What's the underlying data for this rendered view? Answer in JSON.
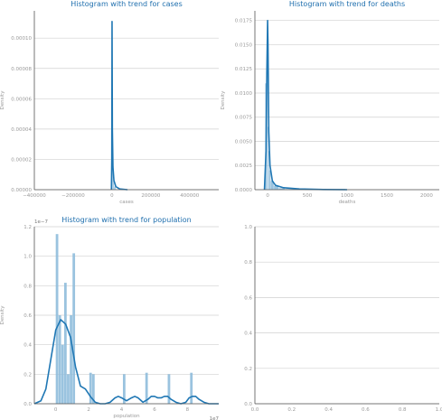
{
  "theme": {
    "accent": "#1f77b4",
    "hist_fill": "#8fbcdc",
    "grid": "#d0d0d0",
    "axis": "#555555",
    "title": "#1f6fae"
  },
  "chart_data": [
    {
      "type": "area",
      "title": "Histogram with trend for cases",
      "xlabel": "cases",
      "ylabel": "Density",
      "xlim": [
        -400000,
        550000
      ],
      "ylim": [
        0,
        0.000118
      ],
      "xticks": [
        -400000,
        -200000,
        0,
        200000,
        400000
      ],
      "xtick_labels": [
        "−400000",
        "−200000",
        "0",
        "200000",
        "400000"
      ],
      "yticks": [
        0,
        2e-05,
        4e-05,
        6e-05,
        8e-05,
        0.0001
      ],
      "ytick_labels": [
        "0.00000",
        "0.00002",
        "0.00004",
        "0.00006",
        "0.00008",
        "0.00010"
      ],
      "grid": true,
      "histogram": {
        "bin_edges": [
          -2000,
          2000,
          6000,
          12000,
          20000
        ],
        "heights": [
          0.000105,
          3e-05,
          6e-06,
          2e-06
        ]
      },
      "trend": {
        "x": [
          -3000,
          -1000,
          0,
          300,
          800,
          2000,
          5000,
          10000,
          20000,
          40000,
          80000
        ],
        "y": [
          0,
          2e-05,
          9e-05,
          0.000111,
          9e-05,
          4e-05,
          1.5e-05,
          6e-06,
          2e-06,
          5e-07,
          0
        ]
      }
    },
    {
      "type": "area",
      "title": "Histogram with trend for deaths",
      "xlabel": "deaths",
      "ylabel": "Density",
      "xlim": [
        -160,
        2160
      ],
      "ylim": [
        0,
        0.0185
      ],
      "xticks": [
        0,
        500,
        1000,
        1500,
        2000
      ],
      "xtick_labels": [
        "0",
        "500",
        "1000",
        "1500",
        "2000"
      ],
      "yticks": [
        0,
        0.0025,
        0.005,
        0.0075,
        0.01,
        0.0125,
        0.015,
        0.0175
      ],
      "ytick_labels": [
        "0.0000",
        "0.0025",
        "0.0050",
        "0.0075",
        "0.0100",
        "0.0125",
        "0.0150",
        "0.0175"
      ],
      "grid": true,
      "histogram": {
        "bin_edges": [
          -30,
          -10,
          0,
          10,
          20,
          40,
          80,
          140,
          220,
          320,
          450
        ],
        "heights": [
          0.011,
          0.015,
          0.0065,
          0.004,
          0.002,
          0.0009,
          0.0004,
          0.00015,
          7e-05,
          3e-05
        ]
      },
      "trend": {
        "x": [
          -40,
          -20,
          -10,
          0,
          5,
          15,
          30,
          60,
          100,
          200,
          400,
          700,
          1000
        ],
        "y": [
          0,
          0.004,
          0.012,
          0.0175,
          0.015,
          0.006,
          0.0025,
          0.0009,
          0.00045,
          0.0002,
          8e-05,
          2e-05,
          0
        ]
      }
    },
    {
      "type": "area",
      "title": "Histogram with trend for population",
      "xlabel": "population",
      "ylabel": "Density",
      "x_multiplier": "1e7",
      "y_multiplier": "1e−7",
      "xlim": [
        -1.3,
        9.9
      ],
      "ylim": [
        0,
        1.2
      ],
      "xticks": [
        0,
        2,
        4,
        6,
        8
      ],
      "xtick_labels": [
        "0",
        "2",
        "4",
        "6",
        "8"
      ],
      "yticks": [
        0,
        0.2,
        0.4,
        0.6,
        0.8,
        1.0,
        1.2
      ],
      "ytick_labels": [
        "0.0",
        "0.2",
        "0.4",
        "0.6",
        "0.8",
        "1.0",
        "1.2"
      ],
      "grid": true,
      "histogram": {
        "bin_edges": [
          0.0,
          0.17,
          0.34,
          0.51,
          0.68,
          0.85,
          1.02,
          1.19,
          1.36,
          1.53,
          1.7,
          1.87,
          2.04,
          2.21,
          2.38,
          2.55,
          2.72,
          2.89,
          3.06,
          3.23,
          3.4,
          3.57,
          3.74,
          3.91,
          4.08,
          4.25,
          4.42,
          4.59,
          4.76,
          4.93,
          5.1,
          5.27,
          5.44,
          5.61,
          5.78,
          5.95,
          6.12,
          6.29,
          6.46,
          6.63,
          6.8,
          6.97,
          7.14,
          7.31,
          7.48,
          7.65,
          7.82,
          7.99,
          8.16,
          8.33
        ],
        "heights": [
          1.15,
          0.6,
          0.4,
          0.82,
          0.2,
          0.6,
          1.02,
          0,
          0,
          0,
          0,
          0,
          0.21,
          0.2,
          0,
          0,
          0,
          0,
          0,
          0,
          0,
          0,
          0,
          0,
          0.2,
          0,
          0,
          0,
          0,
          0,
          0,
          0,
          0.21,
          0,
          0,
          0,
          0,
          0,
          0,
          0,
          0.2,
          0,
          0,
          0,
          0,
          0,
          0,
          0,
          0.21
        ]
      },
      "trend": {
        "x": [
          -1.3,
          -0.9,
          -0.6,
          -0.3,
          0.0,
          0.3,
          0.6,
          0.9,
          1.2,
          1.5,
          1.8,
          2.1,
          2.4,
          2.7,
          3.0,
          3.3,
          3.6,
          3.8,
          4.0,
          4.3,
          4.6,
          4.8,
          5.0,
          5.3,
          5.6,
          5.8,
          6.0,
          6.2,
          6.4,
          6.6,
          6.8,
          7.0,
          7.3,
          7.6,
          7.9,
          8.1,
          8.3,
          8.5,
          8.7,
          9.0,
          9.3,
          9.9
        ],
        "y": [
          0,
          0.02,
          0.1,
          0.3,
          0.5,
          0.57,
          0.54,
          0.45,
          0.25,
          0.12,
          0.1,
          0.05,
          0.01,
          0,
          0,
          0.01,
          0.04,
          0.05,
          0.04,
          0.02,
          0.04,
          0.05,
          0.04,
          0.01,
          0.03,
          0.05,
          0.05,
          0.04,
          0.04,
          0.05,
          0.05,
          0.03,
          0.01,
          0,
          0.01,
          0.04,
          0.05,
          0.05,
          0.03,
          0.01,
          0,
          0
        ]
      }
    },
    {
      "type": "area",
      "title": "",
      "xlabel": "",
      "ylabel": "",
      "xlim": [
        0,
        1
      ],
      "ylim": [
        0,
        1
      ],
      "xticks": [
        0,
        0.2,
        0.4,
        0.6,
        0.8,
        1.0
      ],
      "xtick_labels": [
        "0.0",
        "0.2",
        "0.4",
        "0.6",
        "0.8",
        "1.0"
      ],
      "yticks": [
        0,
        0.2,
        0.4,
        0.6,
        0.8,
        1.0
      ],
      "ytick_labels": [
        "0.0",
        "0.2",
        "0.4",
        "0.6",
        "0.8",
        "1.0"
      ],
      "grid": true
    }
  ]
}
